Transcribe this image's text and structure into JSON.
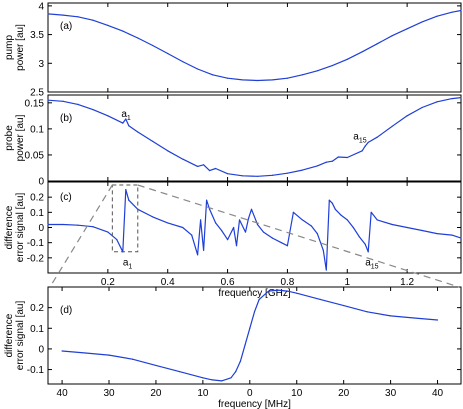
{
  "chart_data": [
    {
      "type": "line",
      "panel_label": "(a)",
      "ylabel_lines": [
        "pump",
        "power [au]"
      ],
      "xlim": [
        0.0,
        1.38
      ],
      "ylim": [
        2.5,
        4.05
      ],
      "yticks": [
        2.5,
        3,
        3.5,
        4
      ],
      "ytick_labels": [
        "2.5",
        "3",
        "3.5",
        "4"
      ],
      "xticks": [
        0.2,
        0.4,
        0.6,
        0.8,
        1.0,
        1.2
      ],
      "x": [
        0.0,
        0.05,
        0.1,
        0.15,
        0.2,
        0.25,
        0.3,
        0.35,
        0.4,
        0.45,
        0.5,
        0.55,
        0.6,
        0.65,
        0.7,
        0.75,
        0.8,
        0.85,
        0.9,
        0.95,
        1.0,
        1.05,
        1.1,
        1.15,
        1.2,
        1.25,
        1.3,
        1.35,
        1.38
      ],
      "y": [
        3.86,
        3.84,
        3.81,
        3.75,
        3.66,
        3.56,
        3.44,
        3.31,
        3.17,
        3.03,
        2.9,
        2.8,
        2.74,
        2.71,
        2.7,
        2.71,
        2.74,
        2.8,
        2.87,
        2.96,
        3.07,
        3.2,
        3.34,
        3.48,
        3.6,
        3.72,
        3.82,
        3.89,
        3.92
      ],
      "grid": false
    },
    {
      "type": "line",
      "panel_label": "(b)",
      "ylabel_lines": [
        "probe",
        "power [au]"
      ],
      "xlim": [
        0.0,
        1.38
      ],
      "ylim": [
        0.0,
        0.165
      ],
      "yticks": [
        0,
        0.05,
        0.1,
        0.15
      ],
      "ytick_labels": [
        "0",
        "0.05",
        "0.1",
        "0.15"
      ],
      "xticks": [
        0.2,
        0.4,
        0.6,
        0.8,
        1.0,
        1.2
      ],
      "x": [
        0.0,
        0.05,
        0.1,
        0.15,
        0.2,
        0.25,
        0.26,
        0.27,
        0.3,
        0.35,
        0.4,
        0.45,
        0.5,
        0.52,
        0.54,
        0.56,
        0.6,
        0.65,
        0.7,
        0.75,
        0.8,
        0.85,
        0.9,
        0.93,
        0.95,
        0.97,
        1.0,
        1.05,
        1.06,
        1.07,
        1.1,
        1.15,
        1.2,
        1.25,
        1.3,
        1.35,
        1.38
      ],
      "y": [
        0.155,
        0.153,
        0.147,
        0.137,
        0.125,
        0.111,
        0.119,
        0.106,
        0.094,
        0.076,
        0.058,
        0.042,
        0.028,
        0.031,
        0.02,
        0.024,
        0.014,
        0.01,
        0.009,
        0.011,
        0.015,
        0.021,
        0.029,
        0.036,
        0.038,
        0.046,
        0.045,
        0.058,
        0.067,
        0.074,
        0.084,
        0.105,
        0.125,
        0.141,
        0.152,
        0.158,
        0.16
      ],
      "annotations": [
        {
          "text": "a",
          "sub": "1",
          "x": 0.245,
          "y": 0.123
        },
        {
          "text": "a",
          "sub": "15",
          "x": 1.02,
          "y": 0.08
        }
      ],
      "grid": false
    },
    {
      "type": "line",
      "panel_label": "(c)",
      "ylabel_lines": [
        "difference",
        "error signal [au]"
      ],
      "xlabel": "frequency [GHz]",
      "xlim": [
        0.0,
        1.38
      ],
      "ylim": [
        -0.3,
        0.3
      ],
      "yticks": [
        -0.2,
        -0.1,
        0,
        0.1,
        0.2
      ],
      "ytick_labels": [
        "-0.2",
        "-0.1",
        "0",
        "0.1",
        "0.2"
      ],
      "xticks": [
        0.2,
        0.4,
        0.6,
        0.8,
        1.0,
        1.2
      ],
      "xtick_labels": [
        "0.2",
        "0.4",
        "0.6",
        "0.8",
        "1",
        "1.2"
      ],
      "x": [
        0.0,
        0.05,
        0.1,
        0.15,
        0.2,
        0.23,
        0.25,
        0.26,
        0.27,
        0.3,
        0.35,
        0.4,
        0.45,
        0.48,
        0.5,
        0.51,
        0.52,
        0.53,
        0.54,
        0.56,
        0.58,
        0.6,
        0.62,
        0.63,
        0.64,
        0.66,
        0.67,
        0.68,
        0.7,
        0.72,
        0.75,
        0.78,
        0.8,
        0.82,
        0.85,
        0.88,
        0.9,
        0.92,
        0.93,
        0.94,
        0.95,
        0.96,
        0.98,
        1.0,
        1.02,
        1.04,
        1.06,
        1.07,
        1.08,
        1.1,
        1.15,
        1.2,
        1.25,
        1.3,
        1.35,
        1.38
      ],
      "y": [
        0.02,
        0.02,
        0.015,
        0.005,
        -0.03,
        -0.08,
        -0.16,
        0.25,
        0.18,
        0.12,
        0.07,
        0.03,
        0.0,
        -0.05,
        -0.18,
        0.05,
        -0.15,
        0.18,
        0.12,
        0.03,
        -0.02,
        -0.08,
        0.0,
        -0.12,
        0.05,
        -0.03,
        0.06,
        0.12,
        0.02,
        -0.03,
        -0.07,
        -0.1,
        -0.12,
        0.1,
        0.05,
        0.01,
        -0.04,
        -0.15,
        -0.28,
        0.18,
        0.16,
        0.12,
        0.08,
        0.05,
        0.0,
        -0.06,
        -0.11,
        -0.16,
        0.1,
        0.05,
        0.02,
        0.0,
        -0.02,
        -0.04,
        -0.05,
        -0.07
      ],
      "annotations": [
        {
          "text": "a",
          "sub": "1",
          "x": 0.25,
          "y": -0.25
        },
        {
          "text": "a",
          "sub": "15",
          "x": 1.06,
          "y": -0.25
        }
      ],
      "grid": false
    },
    {
      "type": "line",
      "panel_label": "(d)",
      "ylabel_lines": [
        "difference",
        "error signal [au]"
      ],
      "xlabel": "frequency [MHz]",
      "xlim": [
        -43,
        45
      ],
      "ylim": [
        -0.17,
        0.3
      ],
      "yticks": [
        -0.1,
        0,
        0.1,
        0.2
      ],
      "ytick_labels": [
        "-0.1",
        "0",
        "0.1",
        "0.2"
      ],
      "xticks": [
        -40,
        -30,
        -20,
        -10,
        0,
        10,
        20,
        30,
        40
      ],
      "xtick_labels": [
        "40",
        "30",
        "20",
        "10",
        "0",
        "10",
        "20",
        "30",
        "40"
      ],
      "x": [
        -40,
        -35,
        -30,
        -25,
        -20,
        -15,
        -10,
        -8,
        -6,
        -4,
        -3,
        -2,
        -1,
        0,
        1,
        2,
        4,
        6,
        8,
        10,
        15,
        20,
        25,
        30,
        35,
        40
      ],
      "y": [
        -0.01,
        -0.02,
        -0.03,
        -0.05,
        -0.08,
        -0.11,
        -0.14,
        -0.15,
        -0.155,
        -0.14,
        -0.11,
        -0.06,
        0.02,
        0.1,
        0.18,
        0.24,
        0.28,
        0.285,
        0.28,
        0.27,
        0.24,
        0.21,
        0.18,
        0.16,
        0.15,
        0.14
      ],
      "grid": false
    }
  ]
}
